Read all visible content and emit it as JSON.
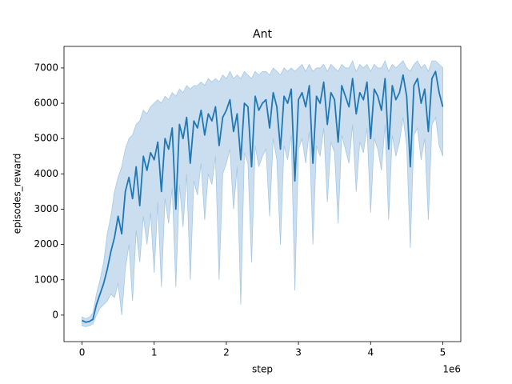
{
  "chart_data": {
    "type": "line",
    "title": "Ant",
    "x_label": "step",
    "y_label": "episodes_reward",
    "x_offset_label": "1e6",
    "xlim": [
      -250000,
      5250000
    ],
    "ylim": [
      -750,
      7610
    ],
    "xticks": [
      {
        "value": 0,
        "label": "0"
      },
      {
        "value": 1000000,
        "label": "1"
      },
      {
        "value": 2000000,
        "label": "2"
      },
      {
        "value": 3000000,
        "label": "3"
      },
      {
        "value": 4000000,
        "label": "4"
      },
      {
        "value": 5000000,
        "label": "5"
      }
    ],
    "yticks": [
      0,
      1000,
      2000,
      3000,
      4000,
      5000,
      6000,
      7000
    ],
    "x": [
      0,
      50000,
      100000,
      150000,
      200000,
      250000,
      300000,
      350000,
      400000,
      450000,
      500000,
      550000,
      600000,
      650000,
      700000,
      750000,
      800000,
      850000,
      900000,
      950000,
      1000000,
      1050000,
      1100000,
      1150000,
      1200000,
      1250000,
      1300000,
      1350000,
      1400000,
      1450000,
      1500000,
      1550000,
      1600000,
      1650000,
      1700000,
      1750000,
      1800000,
      1850000,
      1900000,
      1950000,
      2000000,
      2050000,
      2100000,
      2150000,
      2200000,
      2250000,
      2300000,
      2350000,
      2400000,
      2450000,
      2500000,
      2550000,
      2600000,
      2650000,
      2700000,
      2750000,
      2800000,
      2850000,
      2900000,
      2950000,
      3000000,
      3050000,
      3100000,
      3150000,
      3200000,
      3250000,
      3300000,
      3350000,
      3400000,
      3450000,
      3500000,
      3550000,
      3600000,
      3650000,
      3700000,
      3750000,
      3800000,
      3850000,
      3900000,
      3950000,
      4000000,
      4050000,
      4100000,
      4150000,
      4200000,
      4250000,
      4300000,
      4350000,
      4400000,
      4450000,
      4500000,
      4550000,
      4600000,
      4650000,
      4700000,
      4750000,
      4800000,
      4850000,
      4900000,
      4950000,
      5000000
    ],
    "series": [
      {
        "color": "#1f77b4",
        "band_color": "#a6c8e4",
        "values": [
          -150,
          -200,
          -180,
          -120,
          300,
          600,
          900,
          1300,
          1800,
          2200,
          2800,
          2300,
          3500,
          3900,
          3300,
          4200,
          3100,
          4500,
          4100,
          4600,
          4400,
          4900,
          3500,
          5000,
          4700,
          5300,
          3000,
          5400,
          5000,
          5600,
          4300,
          5500,
          5300,
          5800,
          5100,
          5700,
          5500,
          5900,
          4800,
          5600,
          5800,
          6100,
          5200,
          5700,
          4400,
          6000,
          5900,
          4200,
          6200,
          5800,
          6000,
          6100,
          5300,
          6300,
          5900,
          4700,
          6200,
          6000,
          6400,
          3800,
          6100,
          6300,
          5900,
          6500,
          4300,
          6200,
          6000,
          6600,
          5400,
          6300,
          6100,
          4900,
          6500,
          6200,
          5900,
          6700,
          5700,
          6300,
          6100,
          6600,
          5000,
          6400,
          6200,
          5800,
          6700,
          4700,
          6500,
          6100,
          6300,
          6800,
          6200,
          4200,
          6500,
          6700,
          6000,
          6400,
          5200,
          6700,
          6900,
          6300,
          5900
        ],
        "upper": [
          -50,
          -100,
          -60,
          50,
          600,
          1000,
          1500,
          2300,
          2800,
          3500,
          3900,
          4200,
          4700,
          5000,
          5100,
          5400,
          5500,
          5800,
          5700,
          5900,
          6000,
          6100,
          6000,
          6200,
          6100,
          6300,
          6200,
          6400,
          6300,
          6500,
          6400,
          6500,
          6500,
          6600,
          6500,
          6700,
          6600,
          6700,
          6600,
          6800,
          6700,
          6900,
          6700,
          6800,
          6700,
          6900,
          6800,
          6700,
          6900,
          6800,
          6900,
          6900,
          6800,
          7000,
          6900,
          6800,
          7000,
          6900,
          7000,
          6900,
          7000,
          7100,
          6900,
          7100,
          6900,
          7000,
          7000,
          7100,
          6900,
          7100,
          7000,
          6900,
          7100,
          7000,
          7000,
          7200,
          6900,
          7100,
          7000,
          7100,
          6900,
          7100,
          7000,
          7000,
          7200,
          6900,
          7100,
          7000,
          7100,
          7200,
          7000,
          6900,
          7100,
          7200,
          7000,
          7100,
          6900,
          7200,
          7200,
          7100,
          7000
        ],
        "lower": [
          -300,
          -330,
          -300,
          -250,
          0,
          200,
          300,
          400,
          600,
          500,
          900,
          0,
          1300,
          2000,
          400,
          2400,
          1500,
          2800,
          2000,
          2900,
          1200,
          3200,
          800,
          3300,
          2600,
          3600,
          800,
          3700,
          2500,
          4000,
          1000,
          3800,
          3400,
          4300,
          2700,
          4000,
          3700,
          4500,
          1000,
          4000,
          4300,
          4700,
          3000,
          4200,
          300,
          4600,
          4300,
          1500,
          4800,
          4200,
          4500,
          4700,
          2800,
          5000,
          4400,
          2000,
          4800,
          4400,
          5100,
          700,
          4700,
          5000,
          4300,
          5200,
          2000,
          4800,
          4500,
          5300,
          3200,
          4900,
          4600,
          2600,
          5100,
          4700,
          4300,
          5400,
          3500,
          4900,
          4600,
          5300,
          2900,
          5000,
          4700,
          4100,
          5400,
          2700,
          5100,
          4500,
          4900,
          5600,
          4800,
          1900,
          5100,
          5300,
          4400,
          5000,
          2700,
          5400,
          5600,
          4800,
          4500
        ]
      }
    ]
  }
}
